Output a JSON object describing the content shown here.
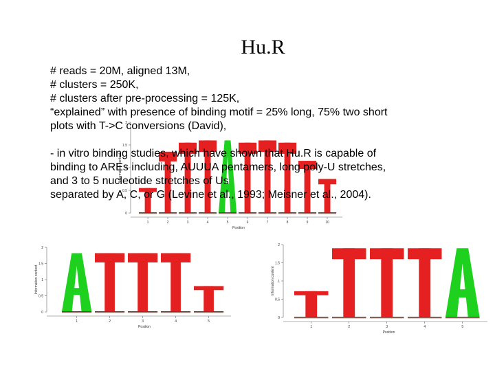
{
  "slide": {
    "title": "Hu.R",
    "lines": [
      "# reads = 20M, aligned 13M,",
      "# clusters = 250K,",
      " # clusters after pre-processing = 125K,",
      "“explained” with presence of binding motif = 25% long, 75% two short",
      "plots with T->C conversions (David),",
      "",
      "- in vitro binding studies, which have shown that Hu.R is capable of",
      "binding to AREs including, AUUUA pentamers, long poly-U stretches,",
      "and 3 to 5 nucleotide stretches of Us",
      "separated by A, C, or G (Levine et al., 1993; Meisner et al., 2004)."
    ]
  },
  "logos": [
    {
      "name": "motif-logo-long",
      "ylabel": "Information content",
      "xlabel": "Position",
      "yticks": [
        "0",
        "0.5",
        "1",
        "1.5",
        "2"
      ],
      "xticks": [
        "1",
        "2",
        "3",
        "4",
        "5",
        "6",
        "7",
        "8",
        "9",
        "10"
      ],
      "letters": [
        "T",
        "T",
        "T",
        "T",
        "A",
        "T",
        "T",
        "T",
        "T",
        "T"
      ],
      "heights": [
        0.55,
        1.35,
        1.55,
        1.6,
        1.6,
        1.55,
        1.6,
        1.55,
        1.15,
        0.75
      ]
    },
    {
      "name": "motif-logo-short-a",
      "ylabel": "Information content",
      "xlabel": "Position",
      "yticks": [
        "0",
        "0.5",
        "1",
        "1.5",
        "2"
      ],
      "xticks": [
        "1",
        "2",
        "3",
        "4",
        "5"
      ],
      "letters": [
        "A",
        "T",
        "T",
        "T",
        "T"
      ],
      "heights": [
        1.82,
        1.82,
        1.82,
        1.82,
        0.8
      ]
    },
    {
      "name": "motif-logo-short-b",
      "ylabel": "Information content",
      "xlabel": "Position",
      "yticks": [
        "0",
        "0.5",
        "1",
        "1.5",
        "2"
      ],
      "xticks": [
        "1",
        "2",
        "3",
        "4",
        "5"
      ],
      "letters": [
        "T",
        "T",
        "T",
        "T",
        "A"
      ],
      "heights": [
        0.72,
        1.9,
        1.9,
        1.9,
        1.9
      ]
    }
  ],
  "colors": {
    "A": "#1fd11f",
    "T": "#e52020",
    "C": "#2f3fd0",
    "G": "#f0a500"
  }
}
